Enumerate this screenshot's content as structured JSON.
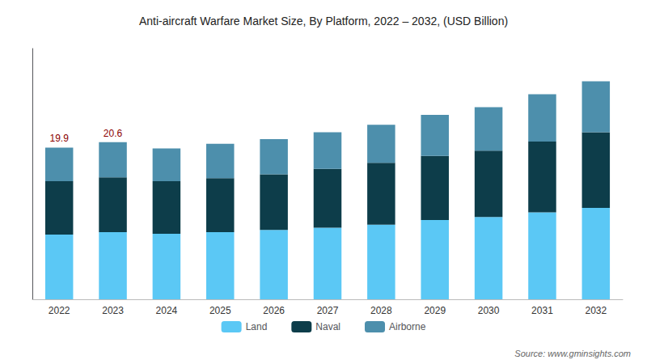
{
  "chart_data": {
    "type": "bar",
    "title": "Anti-aircraft Warfare Market Size, By Platform, 2022 – 2032, (USD Billion)",
    "categories": [
      "2022",
      "2023",
      "2024",
      "2025",
      "2026",
      "2027",
      "2028",
      "2029",
      "2030",
      "2031",
      "2032"
    ],
    "series": [
      {
        "name": "Land",
        "color": "#5bc8f5",
        "values": [
          8.5,
          8.8,
          8.6,
          8.8,
          9.1,
          9.4,
          9.8,
          10.4,
          10.8,
          11.4,
          12.0
        ]
      },
      {
        "name": "Naval",
        "color": "#0d3d4a",
        "values": [
          7.0,
          7.2,
          6.9,
          7.1,
          7.3,
          7.7,
          8.1,
          8.4,
          8.7,
          9.3,
          9.9
        ]
      },
      {
        "name": "Airborne",
        "color": "#4d8fac",
        "values": [
          4.4,
          4.6,
          4.3,
          4.5,
          4.6,
          4.8,
          5.0,
          5.4,
          5.7,
          6.2,
          6.7
        ]
      }
    ],
    "stacked": true,
    "ylim": [
      0,
      32.89
    ],
    "tick_labels": "x",
    "grid": false,
    "legend": "bottom",
    "annotations": [
      {
        "x": "2022",
        "text": "19.9",
        "color": "#8b0000"
      },
      {
        "x": "2023",
        "text": "20.6",
        "color": "#8b0000"
      }
    ],
    "source": "Source: www.gminsights.com"
  }
}
